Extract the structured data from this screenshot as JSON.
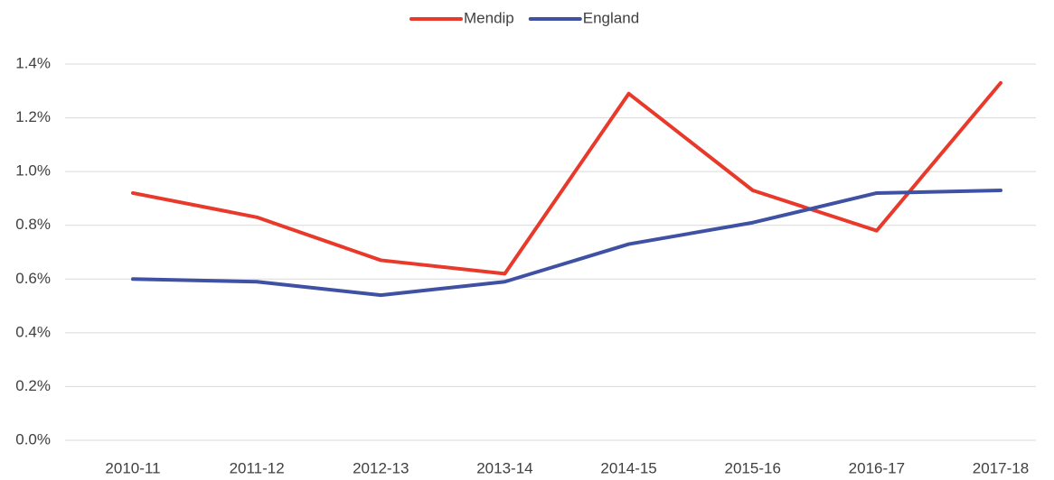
{
  "chart_data": {
    "type": "line",
    "categories": [
      "2010-11",
      "2011-12",
      "2012-13",
      "2013-14",
      "2014-15",
      "2015-16",
      "2016-17",
      "2017-18"
    ],
    "series": [
      {
        "name": "Mendip",
        "color": "#e8392b",
        "values": [
          0.92,
          0.83,
          0.67,
          0.62,
          1.29,
          0.93,
          0.78,
          1.33
        ]
      },
      {
        "name": "England",
        "color": "#3f51a3",
        "values": [
          0.6,
          0.59,
          0.54,
          0.59,
          0.73,
          0.81,
          0.92,
          0.93
        ]
      }
    ],
    "ylim": [
      0,
      1.4
    ],
    "yticks": [
      {
        "value": 0,
        "label": "0.0%"
      },
      {
        "value": 0.2,
        "label": "0.2%"
      },
      {
        "value": 0.4,
        "label": "0.4%"
      },
      {
        "value": 0.6,
        "label": "0.6%"
      },
      {
        "value": 0.8,
        "label": "0.8%"
      },
      {
        "value": 1.0,
        "label": "1.0%"
      },
      {
        "value": 1.2,
        "label": "1.2%"
      },
      {
        "value": 1.4,
        "label": "1.4%"
      }
    ],
    "grid": true,
    "legend": "top"
  }
}
